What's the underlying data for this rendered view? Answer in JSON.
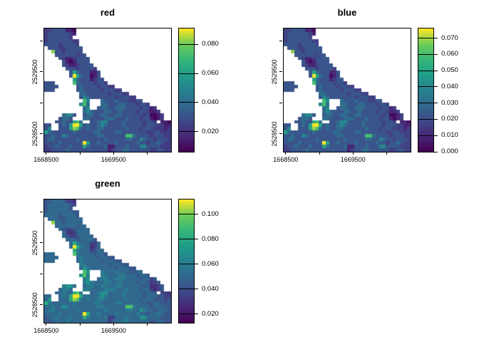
{
  "figure": {
    "background": "#ffffff",
    "description": "Three raster map panels (red, blue, green channels) with viridis color scale legends"
  },
  "chart_data": {
    "type": "heatmap",
    "layout": "2x2 grid of panels, bottom-right empty; each panel has map box, outside axis ticks, vertical colorbar legend at right",
    "colormap": "viridis",
    "colormap_anchors": [
      [
        0.0,
        "#440154"
      ],
      [
        0.125,
        "#482878"
      ],
      [
        0.25,
        "#3e4a89"
      ],
      [
        0.375,
        "#31688e"
      ],
      [
        0.5,
        "#26828e"
      ],
      [
        0.625,
        "#1f9e89"
      ],
      [
        0.75,
        "#35b779"
      ],
      [
        0.875,
        "#6dcd59"
      ],
      [
        1.0,
        "#fde725"
      ]
    ],
    "shared_grid": {
      "description": "Normalized raster intensities; '.' = NA (no data, white). Same coastline scene for all three channels; chars map to normalized 0-1 value via palette.",
      "ncols": 36,
      "nrows": 35,
      "na_char": ".",
      "palette": {
        "0": 0.02,
        "1": 0.1,
        "2": 0.2,
        "3": 0.28,
        "4": 0.38,
        "5": 0.52,
        "6": 0.65,
        "7": 0.78,
        "8": 0.9,
        "9": 1.0
      },
      "rows": [
        "223333110...........................",
        "233333321...........................",
        "23333332............................",
        "2333333322..........................",
        "3333233332..........................",
        ".3332233333.........................",
        "..833233333.........................",
        "...333333233........................",
        "....321123333.......................",
        ".....31013333.......................",
        ".....321123333......................",
        "......333233332.....................",
        ".......364333113....................",
        ".......396433013....................",
        "........643331233...................",
        "333.....7433332332..................",
        "3333.....34333323322................",
        "333......3433333233322..............",
        "..........44333333233322............",
        "..........3543333333233322..........",
        "...........75...433343332233........",
        "..........574...44333443332332......",
        "...........45..34433444333323312....",
        "...........4543334433433332332112...",
        ".....4553..34433443344333333230012..",
        "....3443...44333344433343332331012..",
        "...33433674..3345533334333332332 110",
        "33..34369963433454333343333323332211",
        "35..33368743433443333334333233322212",
        "643333334333334433334433333332233222",
        "334335433333333443333337743333233322",
        "344333333433333334333334433543323332",
        "333343333339633433334333334332334322",
        "233433343336433334113334333553333222",
        "223333433333333333123344333333223322"
      ]
    },
    "charts": [
      {
        "id": "red",
        "title": "red",
        "x_axis": {
          "range": [
            1668470,
            1670355
          ],
          "ticks": [
            1668500,
            1669000,
            1669500,
            1670000
          ],
          "visible_labels": [
            {
              "text": "1668500",
              "value": 1668500
            },
            {
              "text": "1669500",
              "value": 1669500
            }
          ]
        },
        "y_axis": {
          "range": [
            2528210,
            2530200
          ],
          "ticks": [
            2530000,
            2529500,
            2529000,
            2528500
          ],
          "visible_labels": [
            {
              "text": "2529500",
              "value": 2529500
            },
            {
              "text": "2528500",
              "value": 2528500
            }
          ]
        },
        "colorbar": {
          "min": 0.006,
          "max": 0.091,
          "tick_values": [
            0.02,
            0.04,
            0.06,
            0.08
          ],
          "tick_labels": [
            "0.020",
            "0.040",
            "0.060",
            "0.080"
          ]
        },
        "value_range": [
          0.006,
          0.091
        ],
        "tone_shift": 0.0
      },
      {
        "id": "blue",
        "title": "blue",
        "x_axis": {
          "range": [
            1668470,
            1670355
          ],
          "ticks": [
            1668500,
            1669000,
            1669500,
            1670000
          ],
          "visible_labels": [
            {
              "text": "1668500",
              "value": 1668500
            },
            {
              "text": "1669500",
              "value": 1669500
            }
          ]
        },
        "y_axis": {
          "range": [
            2528210,
            2530200
          ],
          "ticks": [
            2530000,
            2529500,
            2529000,
            2528500
          ],
          "visible_labels": [
            {
              "text": "2529500",
              "value": 2529500
            },
            {
              "text": "2528500",
              "value": 2528500
            }
          ]
        },
        "colorbar": {
          "min": 0.0,
          "max": 0.076,
          "tick_values": [
            0.0,
            0.01,
            0.02,
            0.03,
            0.04,
            0.05,
            0.06,
            0.07
          ],
          "tick_labels": [
            "0.000",
            "0.010",
            "0.020",
            "0.030",
            "0.040",
            "0.050",
            "0.060",
            "0.070"
          ]
        },
        "value_range": [
          0.0,
          0.076
        ],
        "tone_shift": 0.02
      },
      {
        "id": "green",
        "title": "green",
        "x_axis": {
          "range": [
            1668470,
            1670355
          ],
          "ticks": [
            1668500,
            1669000,
            1669500,
            1670000
          ],
          "visible_labels": [
            {
              "text": "1668500",
              "value": 1668500
            },
            {
              "text": "1669500",
              "value": 1669500
            }
          ]
        },
        "y_axis": {
          "range": [
            2528210,
            2530200
          ],
          "ticks": [
            2530000,
            2529500,
            2529000,
            2528500
          ],
          "visible_labels": [
            {
              "text": "2529500",
              "value": 2529500
            },
            {
              "text": "2528500",
              "value": 2528500
            }
          ]
        },
        "colorbar": {
          "min": 0.013,
          "max": 0.112,
          "tick_values": [
            0.02,
            0.04,
            0.06,
            0.08,
            0.1
          ],
          "tick_labels": [
            "0.020",
            "0.040",
            "0.060",
            "0.080",
            "0.100"
          ]
        },
        "value_range": [
          0.013,
          0.112
        ],
        "tone_shift": 0.13
      }
    ]
  }
}
